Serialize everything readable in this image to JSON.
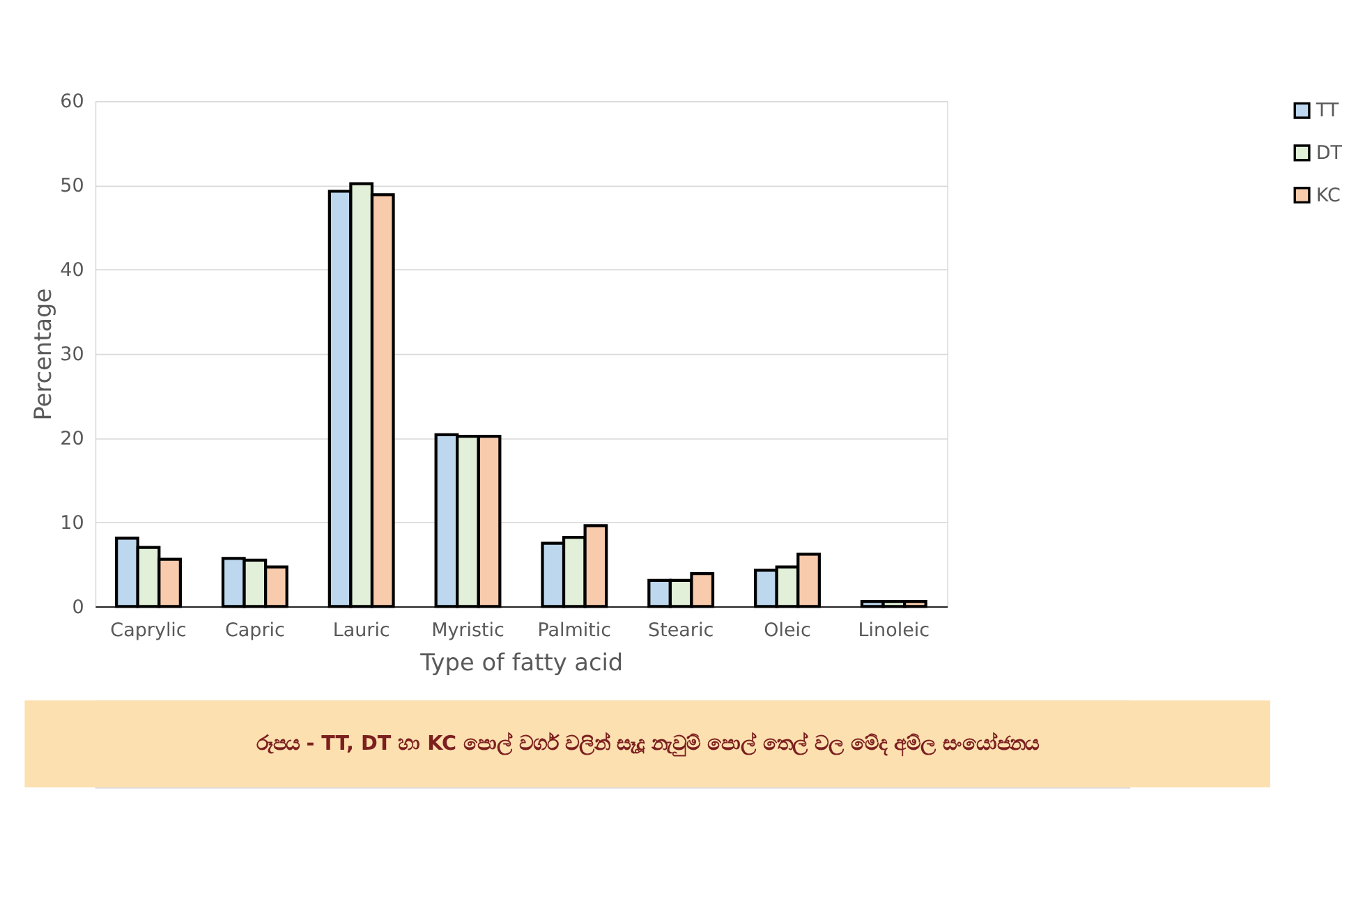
{
  "chart_data": {
    "type": "bar",
    "xlabel": "Type of fatty acid",
    "ylabel": "Percentage",
    "categories": [
      "Caprylic",
      "Capric",
      "Lauric",
      "Myristic",
      "Palmitic",
      "Stearic",
      "Oleic",
      "Linoleic"
    ],
    "series": [
      {
        "name": "TT",
        "color": "#bdd7ee",
        "values": [
          8.1,
          5.7,
          49.3,
          20.4,
          7.5,
          3.1,
          4.3,
          0.6
        ]
      },
      {
        "name": "DT",
        "color": "#e2f0d9",
        "values": [
          7.0,
          5.5,
          50.2,
          20.2,
          8.2,
          3.1,
          4.7,
          0.6
        ]
      },
      {
        "name": "KC",
        "color": "#f8cbad",
        "values": [
          5.6,
          4.7,
          48.9,
          20.2,
          9.6,
          3.9,
          6.2,
          0.6
        ]
      }
    ],
    "ylim": [
      0,
      60
    ],
    "yticks": [
      0,
      10,
      20,
      30,
      40,
      50,
      60
    ],
    "grid": "y",
    "legend": "right",
    "annotations": [
      "රූපය  -  TT, DT හා  KC පොල් වර්ග වලින් සෑදූ නැවුම් පොල් තෙල් වල මේද අම්ල සංයෝජනය"
    ]
  }
}
